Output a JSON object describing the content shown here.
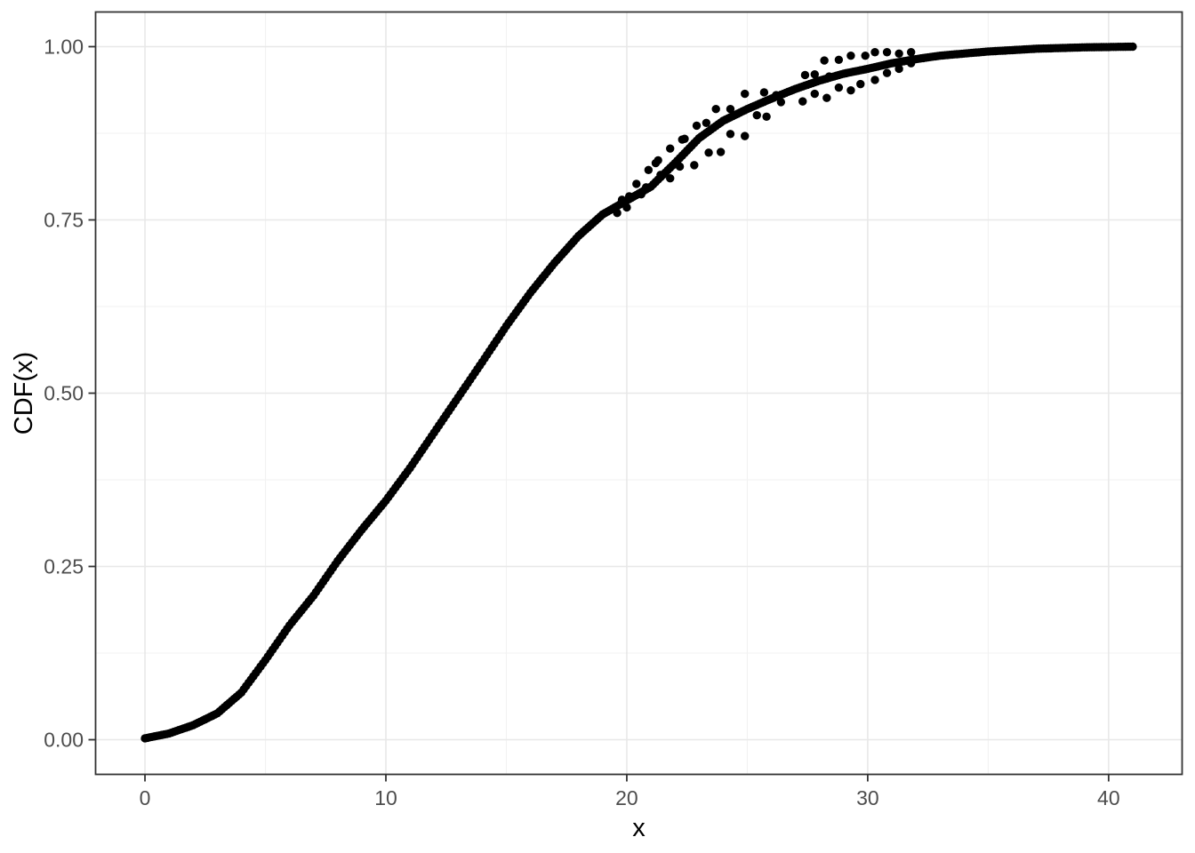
{
  "chart_data": {
    "type": "scatter",
    "title": "",
    "xlabel": "x",
    "ylabel": "CDF(x)",
    "x_axis": {
      "ticks": [
        0,
        10,
        20,
        30,
        40
      ],
      "tick_labels": [
        "0",
        "10",
        "20",
        "30",
        "40"
      ],
      "minor_gridlines": [
        5,
        15,
        25,
        35
      ],
      "range": [
        -2.05,
        43.05
      ]
    },
    "y_axis": {
      "ticks": [
        0,
        0.25,
        0.5,
        0.75,
        1.0
      ],
      "tick_labels": [
        "0.00",
        "0.25",
        "0.50",
        "0.75",
        "1.00"
      ],
      "minor_gridlines": [
        0.125,
        0.375,
        0.625,
        0.875
      ],
      "range": [
        -0.05,
        1.05
      ]
    },
    "grid": "on",
    "legend": "none",
    "point_color": "#000000",
    "point_radius_px": 4.7,
    "curve_render_step_x": 0.1,
    "series": [
      {
        "name": "smooth-cdf-curve",
        "style": "dense-dotted-curve",
        "points": [
          [
            0,
            0.002
          ],
          [
            1,
            0.009
          ],
          [
            2,
            0.021
          ],
          [
            3,
            0.038
          ],
          [
            4,
            0.068
          ],
          [
            5,
            0.115
          ],
          [
            6,
            0.165
          ],
          [
            7,
            0.208
          ],
          [
            8,
            0.258
          ],
          [
            9,
            0.303
          ],
          [
            10,
            0.345
          ],
          [
            11,
            0.392
          ],
          [
            12,
            0.443
          ],
          [
            13,
            0.494
          ],
          [
            14,
            0.545
          ],
          [
            15,
            0.597
          ],
          [
            16,
            0.645
          ],
          [
            17,
            0.688
          ],
          [
            18,
            0.727
          ],
          [
            19,
            0.758
          ],
          [
            20,
            0.778
          ],
          [
            21,
            0.798
          ],
          [
            22,
            0.832
          ],
          [
            23,
            0.868
          ],
          [
            24,
            0.893
          ],
          [
            25,
            0.91
          ],
          [
            26,
            0.925
          ],
          [
            27,
            0.939
          ],
          [
            28,
            0.951
          ],
          [
            29,
            0.961
          ],
          [
            30,
            0.968
          ],
          [
            31,
            0.976
          ],
          [
            32,
            0.982
          ],
          [
            33,
            0.987
          ],
          [
            34,
            0.99
          ],
          [
            35,
            0.993
          ],
          [
            36,
            0.995
          ],
          [
            37,
            0.997
          ],
          [
            38,
            0.998
          ],
          [
            39,
            0.999
          ],
          [
            40,
            0.9995
          ],
          [
            41,
            1.0
          ]
        ]
      },
      {
        "name": "noisy-cdf-points",
        "style": "scatter",
        "points": [
          [
            19.6,
            0.76
          ],
          [
            19.8,
            0.779
          ],
          [
            20.0,
            0.768
          ],
          [
            20.1,
            0.784
          ],
          [
            20.4,
            0.802
          ],
          [
            20.6,
            0.787
          ],
          [
            20.8,
            0.797
          ],
          [
            20.9,
            0.822
          ],
          [
            21.2,
            0.832
          ],
          [
            21.3,
            0.836
          ],
          [
            21.4,
            0.815
          ],
          [
            21.8,
            0.81
          ],
          [
            21.8,
            0.853
          ],
          [
            22.2,
            0.827
          ],
          [
            22.3,
            0.866
          ],
          [
            22.4,
            0.867
          ],
          [
            22.8,
            0.829
          ],
          [
            22.9,
            0.886
          ],
          [
            23.3,
            0.89
          ],
          [
            23.4,
            0.847
          ],
          [
            23.7,
            0.91
          ],
          [
            23.9,
            0.848
          ],
          [
            24.3,
            0.874
          ],
          [
            24.3,
            0.91
          ],
          [
            24.9,
            0.871
          ],
          [
            24.9,
            0.932
          ],
          [
            25.4,
            0.901
          ],
          [
            25.7,
            0.934
          ],
          [
            25.8,
            0.899
          ],
          [
            26.2,
            0.93
          ],
          [
            26.4,
            0.92
          ],
          [
            27.3,
            0.921
          ],
          [
            27.4,
            0.959
          ],
          [
            27.8,
            0.932
          ],
          [
            27.8,
            0.96
          ],
          [
            28.2,
            0.98
          ],
          [
            28.3,
            0.926
          ],
          [
            28.4,
            0.957
          ],
          [
            28.8,
            0.941
          ],
          [
            28.8,
            0.981
          ],
          [
            29.3,
            0.937
          ],
          [
            29.3,
            0.987
          ],
          [
            29.7,
            0.946
          ],
          [
            29.9,
            0.987
          ],
          [
            30.3,
            0.952
          ],
          [
            30.3,
            0.992
          ],
          [
            30.8,
            0.962
          ],
          [
            30.8,
            0.992
          ],
          [
            31.3,
            0.968
          ],
          [
            31.3,
            0.99
          ],
          [
            31.8,
            0.976
          ],
          [
            31.8,
            0.992
          ]
        ]
      }
    ],
    "colors": {
      "background": "#ffffff",
      "panel_background": "#ffffff",
      "panel_border": "#333333",
      "major_gridline": "#e8e8e8",
      "minor_gridline": "#f2f2f2",
      "tick_mark": "#333333",
      "tick_label": "#4d4d4d",
      "axis_title": "#000000",
      "points": "#000000"
    }
  }
}
